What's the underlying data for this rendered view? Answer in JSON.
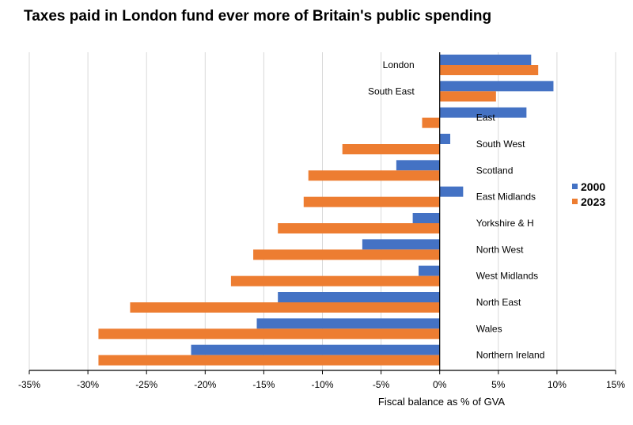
{
  "chart_data": {
    "type": "bar",
    "orientation": "horizontal",
    "title": "Taxes paid in London fund ever more of Britain's public spending",
    "xlabel": "Fiscal balance as % of GVA",
    "ylabel": "",
    "xlim": [
      -35,
      15
    ],
    "x_ticks": [
      -35,
      -30,
      -25,
      -20,
      -15,
      -10,
      -5,
      0,
      5,
      10,
      15
    ],
    "x_tick_labels": [
      "-35%",
      "-30%",
      "-25%",
      "-20%",
      "-15%",
      "-10%",
      "-5%",
      "0%",
      "5%",
      "10%",
      "15%"
    ],
    "grid": true,
    "legend_position": "right",
    "categories": [
      "London",
      "South East",
      "East",
      "South West",
      "Scotland",
      "East Midlands",
      "Yorkshire & H",
      "North West",
      "West Midlands",
      "North East",
      "Wales",
      "Northern Ireland"
    ],
    "series": [
      {
        "name": "2000",
        "color": "#4472C4",
        "values": [
          7.8,
          9.7,
          7.4,
          0.9,
          -3.7,
          2.0,
          -2.3,
          -6.6,
          -1.8,
          -13.8,
          -15.6,
          -21.2
        ]
      },
      {
        "name": "2023",
        "color": "#ED7D31",
        "values": [
          8.4,
          4.8,
          -1.5,
          -8.3,
          -11.2,
          -11.6,
          -13.8,
          -15.9,
          -17.8,
          -26.4,
          -29.1,
          -29.1
        ]
      }
    ]
  }
}
